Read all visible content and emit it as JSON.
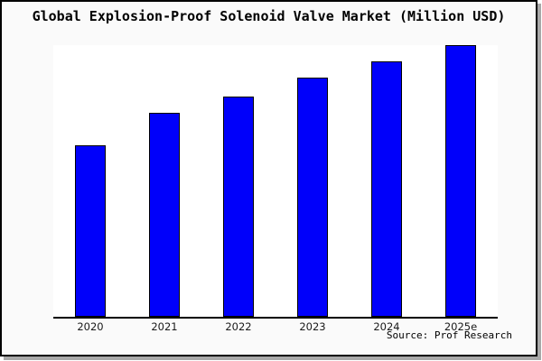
{
  "chart_data": {
    "type": "bar",
    "title": "Global Explosion-Proof Solenoid Valve Market (Million USD)",
    "categories": [
      "2020",
      "2021",
      "2022",
      "2023",
      "2024",
      "2025e"
    ],
    "values": [
      63,
      75,
      81,
      88,
      94,
      100
    ],
    "value_scale_note": "y-axis has no tick labels or gridlines; values are relative index with 2025e = 100",
    "xlabel": "",
    "ylabel": "",
    "ylim": [
      0,
      100
    ],
    "grid": false,
    "legend": false,
    "source": "Source: Prof Research",
    "colors": {
      "bar_fill": "#0000fa",
      "bar_border": "#000000",
      "frame_background": "#fafafa",
      "plot_background": "#ffffff",
      "axis": "#000000",
      "text": "#000000"
    }
  }
}
